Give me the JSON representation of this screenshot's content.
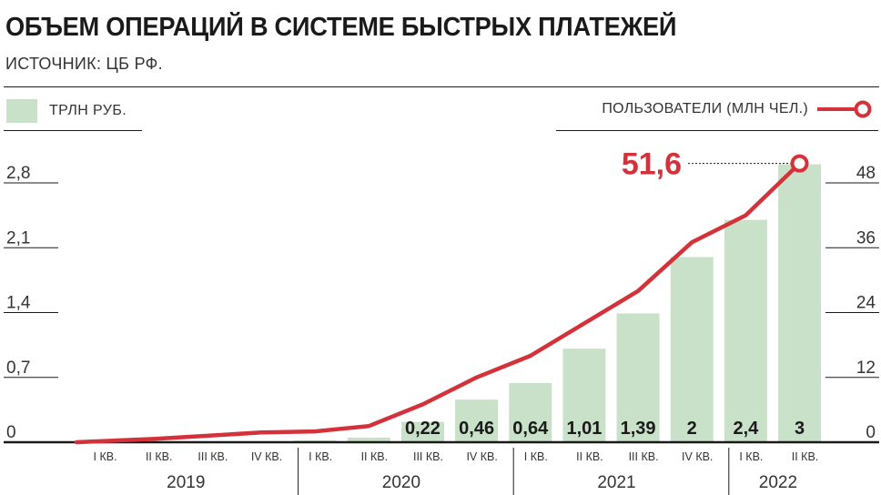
{
  "header": {
    "title": "ОБЪЕМ ОПЕРАЦИЙ В СИСТЕМЕ БЫСТРЫХ ПЛАТЕЖЕЙ",
    "source": "ИСТОЧНИК: ЦБ РФ."
  },
  "legend": {
    "bars_label": "ТРЛН РУБ.",
    "line_label": "ПОЛЬЗОВАТЕЛИ (МЛН ЧЕЛ.)"
  },
  "colors": {
    "bar": "#c8e1c8",
    "line": "#d3323a",
    "text": "#1a1a1a"
  },
  "chart_data": {
    "type": "bar",
    "categories": [
      "I КВ.",
      "II КВ.",
      "III КВ.",
      "IV КВ.",
      "I КВ.",
      "II КВ.",
      "III КВ.",
      "IV КВ.",
      "I КВ.",
      "II КВ.",
      "III КВ.",
      "IV КВ.",
      "I КВ.",
      "II КВ."
    ],
    "years": [
      {
        "label": "2019",
        "quarters": 4
      },
      {
        "label": "2020",
        "quarters": 4
      },
      {
        "label": "2021",
        "quarters": 4
      },
      {
        "label": "2022",
        "quarters": 2
      }
    ],
    "series": [
      {
        "values": [
          0,
          0,
          0,
          0,
          0.02,
          0.05,
          0.22,
          0.46,
          0.64,
          1.01,
          1.39,
          2,
          2.4,
          3
        ],
        "data_labels": [
          "",
          "",
          "",
          "",
          "",
          "",
          "0,22",
          "0,46",
          "0,64",
          "1,01",
          "1,39",
          "2",
          "2,4",
          "3"
        ],
        "axis": "left"
      },
      {
        "values": [
          0,
          0.6,
          1.2,
          1.8,
          2.0,
          3.0,
          7.0,
          12.0,
          16.0,
          22.0,
          28.0,
          37.0,
          42.0,
          51.6
        ],
        "axis": "right",
        "peak_label": "51,6"
      }
    ],
    "left_axis": {
      "ylim": [
        0,
        3.0
      ],
      "ticks": [
        0,
        0.7,
        1.4,
        2.1,
        2.8
      ],
      "tick_labels": [
        "0",
        "0,7",
        "1,4",
        "2,1",
        "2,8"
      ]
    },
    "right_axis": {
      "ylim": [
        0,
        55.3
      ],
      "ticks": [
        0,
        12,
        24,
        36,
        48
      ],
      "tick_labels": [
        "0",
        "12",
        "24",
        "36",
        "48"
      ]
    },
    "grid": false,
    "legend_placement": "top"
  }
}
